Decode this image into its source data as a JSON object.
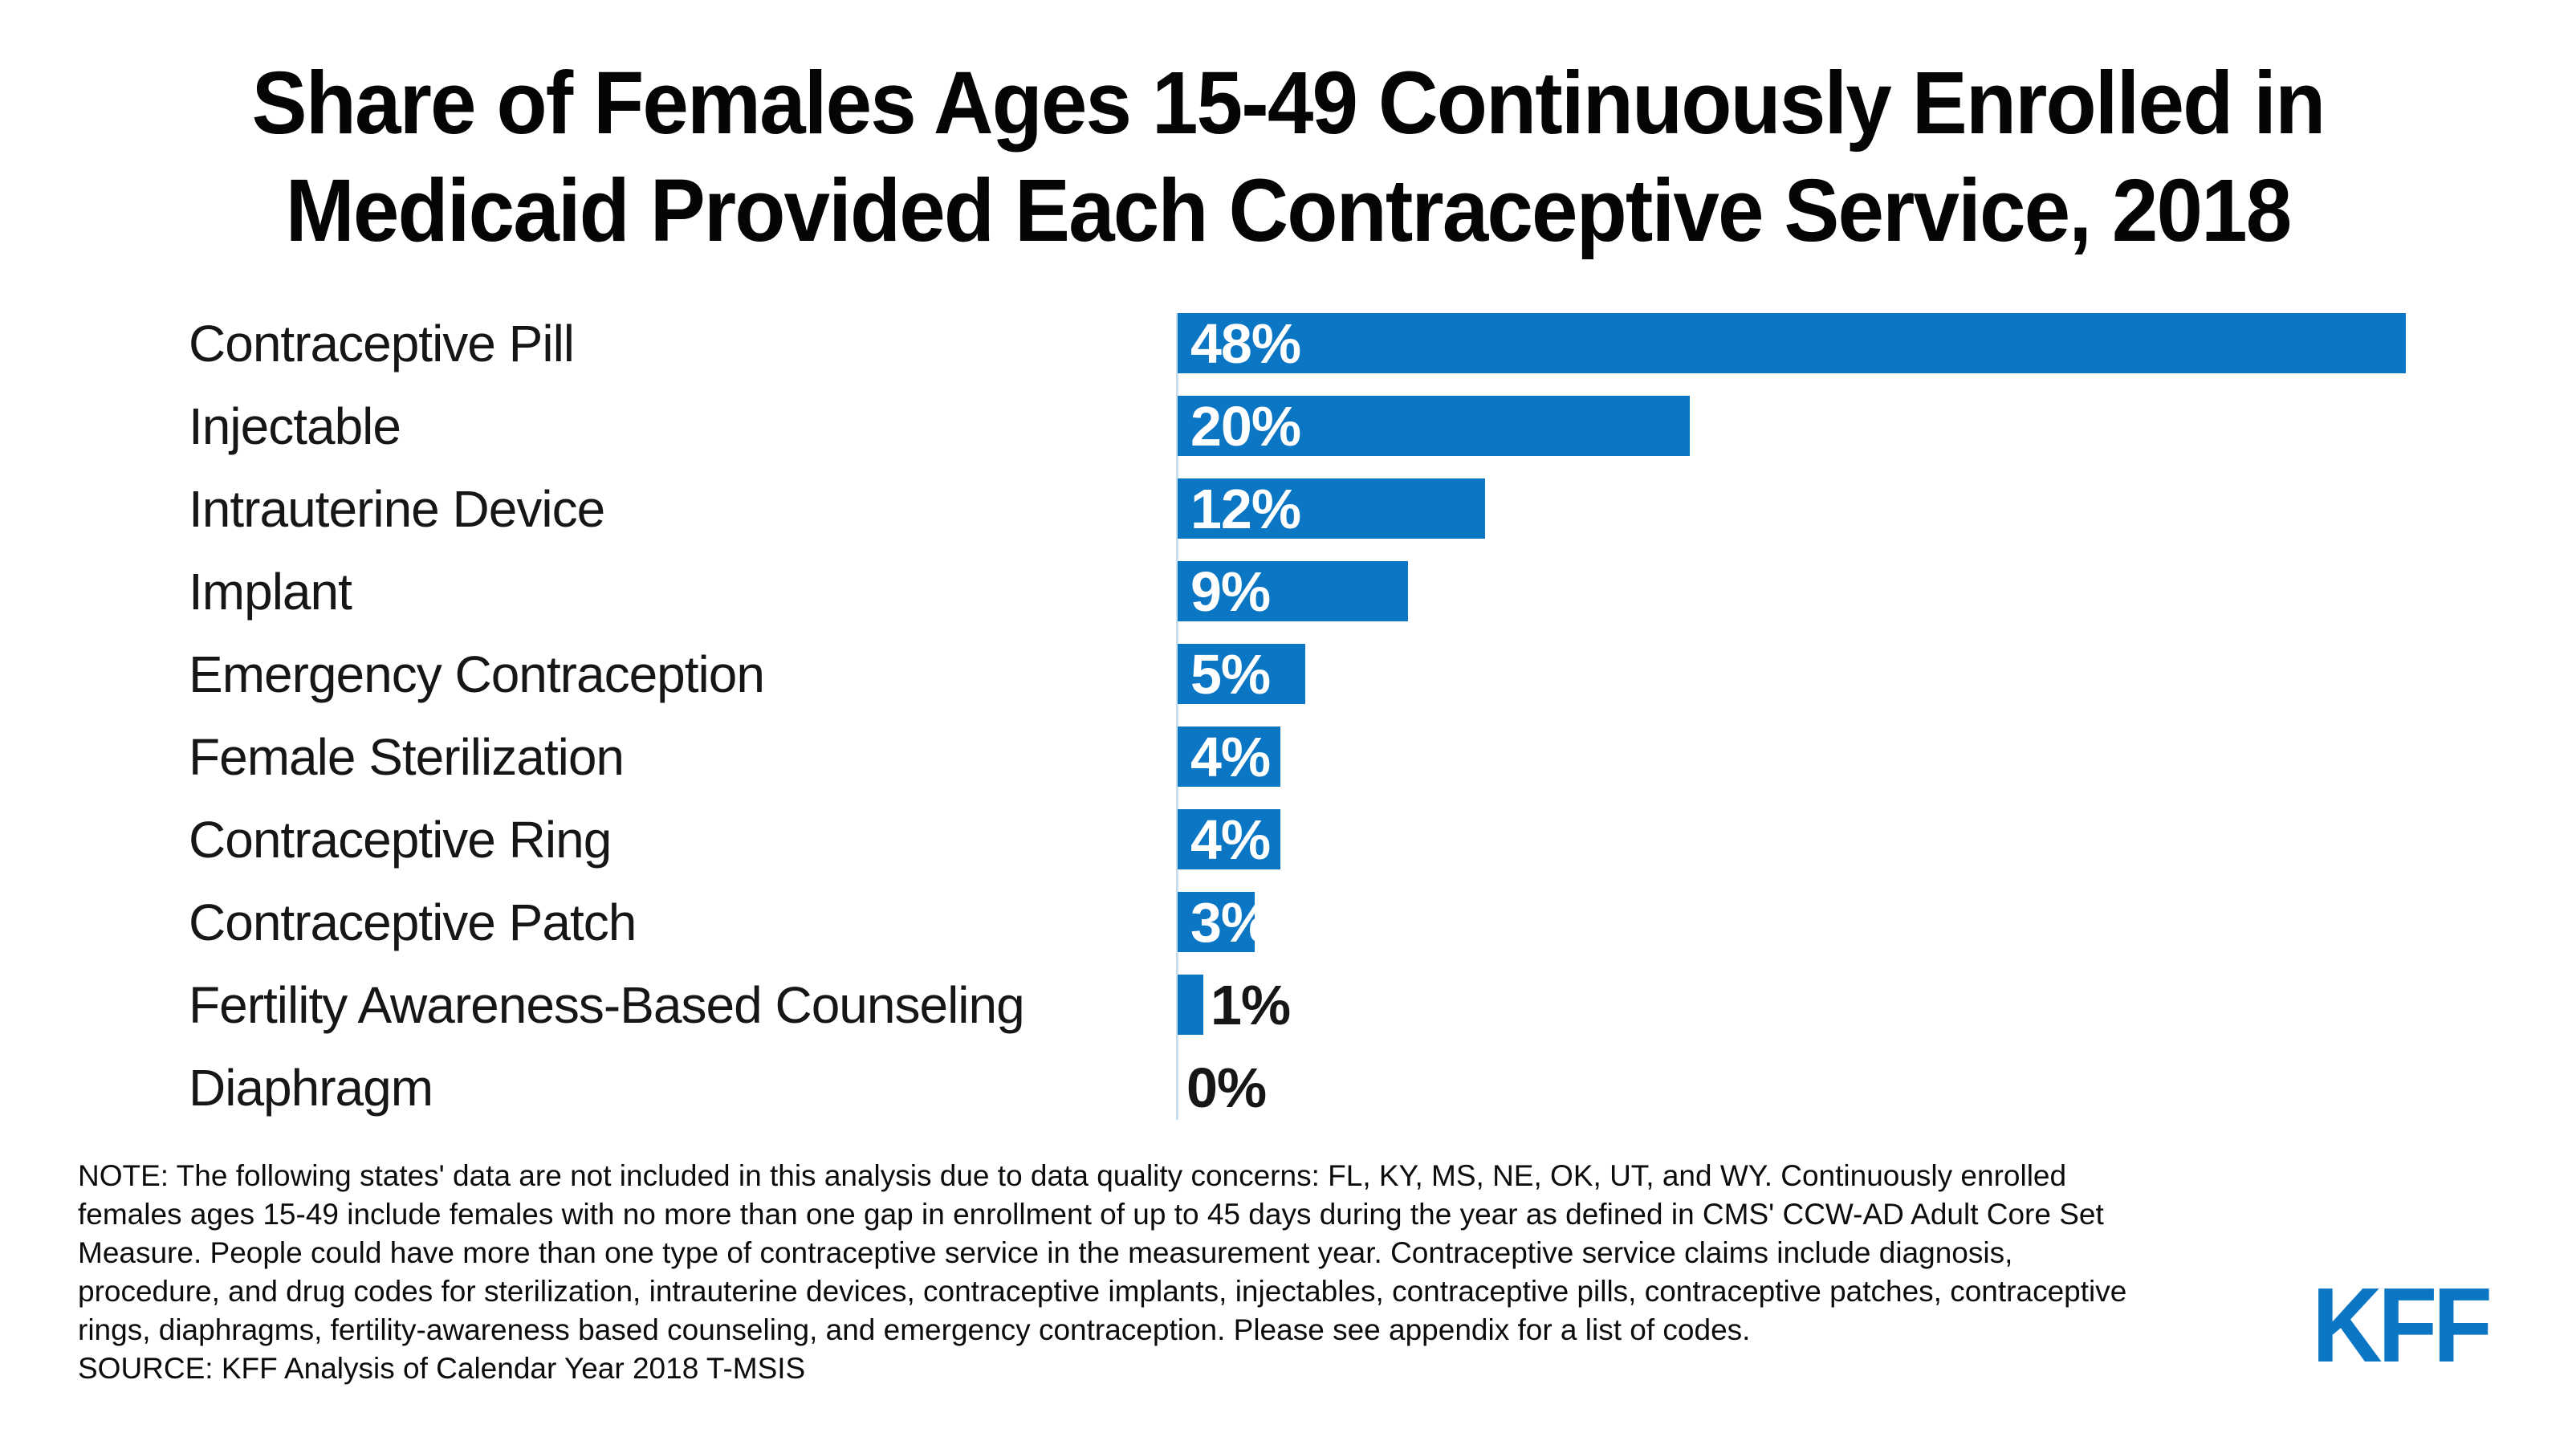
{
  "title": "Share of Females Ages 15-49 Continuously Enrolled in Medicaid Provided Each Contraceptive Service, 2018",
  "title_lines": [
    "Share of Females Ages 15-49 Continuously Enrolled in",
    "Medicaid Provided Each Contraceptive Service, 2018"
  ],
  "chart_data": {
    "type": "bar",
    "orientation": "horizontal",
    "title": "Share of Females Ages 15-49 Continuously Enrolled in Medicaid Provided Each Contraceptive Service, 2018",
    "categories": [
      "Contraceptive Pill",
      "Injectable",
      "Intrauterine Device",
      "Implant",
      "Emergency Contraception",
      "Female Sterilization",
      "Contraceptive Ring",
      "Contraceptive Patch",
      "Fertility Awareness-Based Counseling",
      "Diaphragm"
    ],
    "values": [
      48,
      20,
      12,
      9,
      5,
      4,
      4,
      3,
      1,
      0
    ],
    "value_labels": [
      "48%",
      "20%",
      "12%",
      "9%",
      "5%",
      "4%",
      "4%",
      "3%",
      "1%",
      "0%"
    ],
    "xlabel": "",
    "ylabel": "",
    "xlim": [
      0,
      50
    ],
    "grid": false,
    "legend": "none",
    "bar_color": "#0B76C4",
    "axis_line_color": "#C9DFF0",
    "value_label_color_inside": "#FFFFFF",
    "value_label_color_outside": "#161616"
  },
  "note": {
    "lines": [
      "NOTE: The following states' data are not included in this analysis due to data quality concerns: FL, KY, MS, NE, OK, UT, and WY. Continuously enrolled",
      "females ages 15-49 include females with no more than one gap in enrollment of up to 45 days during the year as defined in CMS' CCW-AD Adult Core Set",
      "Measure. People could have more than one type of contraceptive service in the measurement year. Contraceptive service claims include diagnosis,",
      "procedure, and drug codes for sterilization, intrauterine devices, contraceptive implants, injectables, contraceptive pills, contraceptive patches, contraceptive",
      "rings, diaphragms, fertility-awareness based counseling, and emergency contraception. Please see appendix for a list of codes.",
      "SOURCE: KFF Analysis of Calendar Year 2018 T-MSIS"
    ]
  },
  "logo": {
    "text": "KFF",
    "color": "#0B76C4"
  }
}
